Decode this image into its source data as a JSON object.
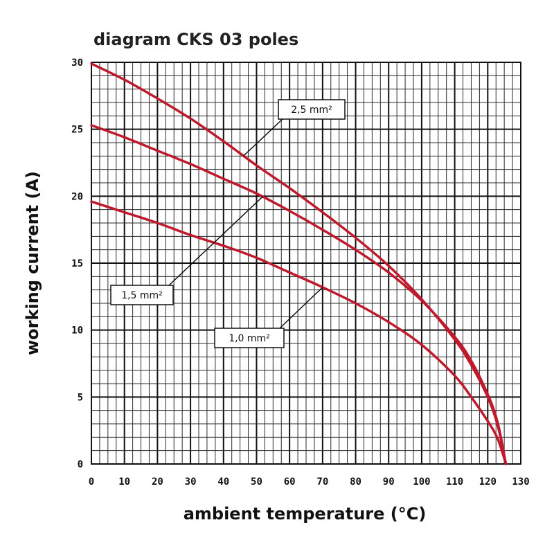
{
  "chart_data": {
    "type": "line",
    "title": "diagram CKS 03 poles",
    "xlabel": "ambient temperature (°C)",
    "ylabel": "working current (A)",
    "xlim": [
      0,
      130
    ],
    "ylim": [
      0,
      30
    ],
    "x_ticks": [
      "0",
      "10",
      "20",
      "30",
      "40",
      "50",
      "60",
      "70",
      "80",
      "90",
      "100",
      "110",
      "120",
      "130"
    ],
    "y_ticks": [
      "0",
      "5",
      "10",
      "15",
      "20",
      "25",
      "30"
    ],
    "grid": true,
    "series": [
      {
        "name": "2,5 mm²",
        "color": "#c0192c",
        "x": [
          0,
          10,
          20,
          30,
          40,
          50,
          60,
          70,
          80,
          90,
          100,
          110,
          115,
          120,
          123,
          125.5
        ],
        "y": [
          29.9,
          28.7,
          27.3,
          25.8,
          24.1,
          22.3,
          20.6,
          18.8,
          16.9,
          14.8,
          12.3,
          9.3,
          7.4,
          5.0,
          2.9,
          0
        ]
      },
      {
        "name": "1,5 mm²",
        "color": "#c0192c",
        "x": [
          0,
          10,
          20,
          30,
          40,
          50,
          60,
          70,
          80,
          90,
          100,
          110,
          115,
          120,
          123,
          125.5
        ],
        "y": [
          25.3,
          24.4,
          23.4,
          22.4,
          21.3,
          20.2,
          18.9,
          17.5,
          16.0,
          14.3,
          12.2,
          9.5,
          7.7,
          5.2,
          3.1,
          0
        ]
      },
      {
        "name": "1,0 mm²",
        "color": "#c0192c",
        "x": [
          0,
          10,
          20,
          30,
          40,
          50,
          60,
          70,
          80,
          90,
          100,
          110,
          115,
          120,
          123,
          125.5
        ],
        "y": [
          19.6,
          18.8,
          18.0,
          17.1,
          16.3,
          15.4,
          14.3,
          13.2,
          12.0,
          10.6,
          8.9,
          6.6,
          5.0,
          3.2,
          1.9,
          0
        ]
      }
    ],
    "annotations": [
      {
        "text": "2,5 mm²",
        "series": "2,5 mm²",
        "point": [
          46,
          23
        ]
      },
      {
        "text": "1,5 mm²",
        "series": "1,5 mm²",
        "point": [
          52,
          20
        ]
      },
      {
        "text": "1,0 mm²",
        "series": "1,0 mm²",
        "point": [
          70,
          13.2
        ]
      }
    ]
  }
}
